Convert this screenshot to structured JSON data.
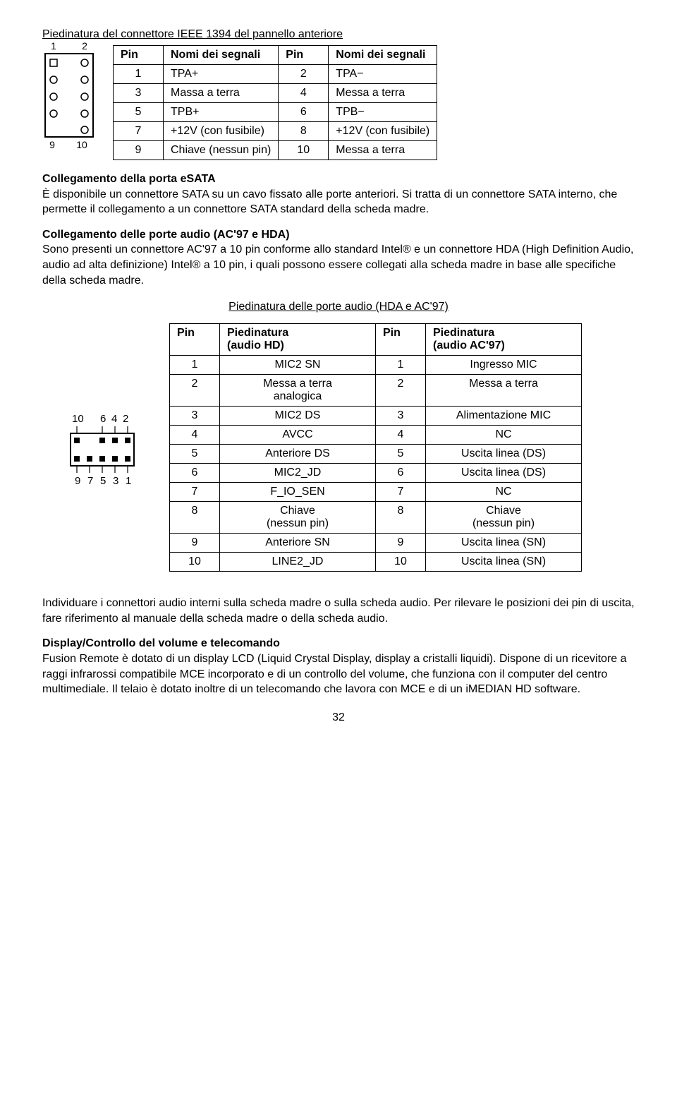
{
  "h1": "Piedinatura del connettore IEEE 1394 del pannello anteriore",
  "diag1": {
    "top_left": "1",
    "top_right": "2",
    "bot_left": "9",
    "bot_right": "10"
  },
  "t1": {
    "h": [
      "Pin",
      "Nomi dei segnali",
      "Pin",
      "Nomi dei segnali"
    ],
    "r": [
      [
        "1",
        "TPA+",
        "2",
        "TPA−"
      ],
      [
        "3",
        "Massa a terra",
        "4",
        "Messa a terra"
      ],
      [
        "5",
        "TPB+",
        "6",
        "TPB−"
      ],
      [
        "7",
        "+12V (con fusibile)",
        "8",
        "+12V (con fusibile)"
      ],
      [
        "9",
        "Chiave (nessun pin)",
        "10",
        "Messa a terra"
      ]
    ]
  },
  "s1_title": "Collegamento della porta eSATA",
  "s1_body": "È disponibile un connettore SATA su un cavo fissato alle porte anteriori. Si tratta di un connettore SATA interno, che permette il collegamento a un connettore SATA standard della scheda madre.",
  "s2_title": "Collegamento delle porte audio (AC'97 e HDA)",
  "s2_body": "Sono presenti un connettore AC'97 a 10 pin conforme allo standard Intel® e un connettore HDA (High Definition Audio, audio ad alta definizione) Intel® a 10 pin, i quali possono essere collegati alla scheda madre in base alle specifiche della scheda madre.",
  "h2": "Piedinatura delle porte audio (HDA e AC'97)",
  "diag2": {
    "top": "10  6 4 2",
    "bot": "9 7 5 3 1"
  },
  "t2": {
    "h": [
      "Pin",
      "Piedinatura\n(audio HD)",
      "Pin",
      "Piedinatura\n(audio AC'97)"
    ],
    "r": [
      [
        "1",
        "MIC2 SN",
        "1",
        "Ingresso MIC"
      ],
      [
        "2",
        "Messa a terra\nanalogica",
        "2",
        "Messa a terra"
      ],
      [
        "3",
        "MIC2 DS",
        "3",
        "Alimentazione MIC"
      ],
      [
        "4",
        "AVCC",
        "4",
        "NC"
      ],
      [
        "5",
        "Anteriore DS",
        "5",
        "Uscita linea (DS)"
      ],
      [
        "6",
        "MIC2_JD",
        "6",
        "Uscita linea (DS)"
      ],
      [
        "7",
        "F_IO_SEN",
        "7",
        "NC"
      ],
      [
        "8",
        "Chiave\n(nessun pin)",
        "8",
        "Chiave\n(nessun pin)"
      ],
      [
        "9",
        "Anteriore SN",
        "9",
        "Uscita linea (SN)"
      ],
      [
        "10",
        "LINE2_JD",
        "10",
        "Uscita linea (SN)"
      ]
    ]
  },
  "footer1": "Individuare i connettori audio interni sulla scheda madre o sulla scheda audio. Per rilevare le posizioni dei pin di uscita, fare riferimento al manuale della scheda madre o della scheda audio.",
  "s3_title": "Display/Controllo del volume e telecomando",
  "s3_body": "Fusion Remote è dotato di un display LCD (Liquid Crystal Display, display a cristalli liquidi). Dispone di un ricevitore a raggi infrarossi compatibile MCE incorporato e di un controllo del volume, che funziona con il computer del centro multimediale. Il telaio è dotato inoltre di un telecomando che lavora con MCE e di un iMEDIAN HD software.",
  "page": "32"
}
